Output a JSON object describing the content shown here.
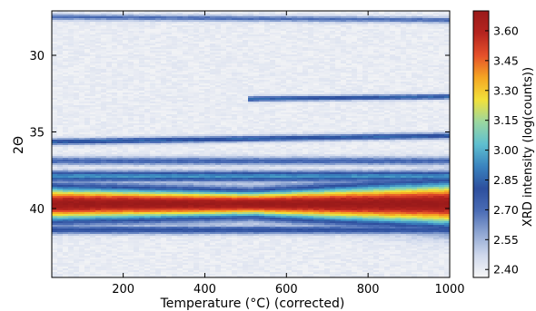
{
  "chart_data": {
    "type": "heatmap",
    "title": "",
    "xlabel": "Temperature (°C)  (corrected)",
    "ylabel": "2Θ",
    "colorbar_label": "XRD intensity (log(counts))",
    "xlim": [
      25,
      1000
    ],
    "ylim": [
      27.1,
      44.5
    ],
    "y_inverted": true,
    "x_ticks": [
      200,
      400,
      600,
      800,
      1000
    ],
    "y_ticks": [
      30,
      35,
      40
    ],
    "colorbar_range": [
      2.36,
      3.7
    ],
    "colorbar_ticks": [
      "3.60",
      "3.45",
      "3.30",
      "3.15",
      "3.00",
      "2.85",
      "2.70",
      "2.55",
      "2.40"
    ],
    "colormap": [
      "#f7f7f7",
      "#cfd8ec",
      "#8fa6d2",
      "#4a6cb5",
      "#2d4f9e",
      "#3a83bf",
      "#5fc0d0",
      "#9bd7a0",
      "#f2e13a",
      "#f5a623",
      "#e5502a",
      "#b5241f",
      "#9a1a1a"
    ],
    "background_level": 2.4,
    "bands": [
      {
        "center": [
          27.5,
          27.7
        ],
        "width": 0.2,
        "peak": 2.7,
        "x_start": 25
      },
      {
        "center": [
          33.0,
          32.7
        ],
        "width": 0.17,
        "peak": 2.85,
        "x_start": 500
      },
      {
        "center": [
          35.65,
          35.25
        ],
        "width": 0.2,
        "peak": 2.85,
        "x_start": 25
      },
      {
        "center": [
          36.9,
          36.9
        ],
        "width": 0.28,
        "peak": 2.72,
        "x_start": 25
      },
      {
        "center": [
          37.9,
          37.9
        ],
        "width": 0.35,
        "peak": 2.95,
        "x_start": 25
      },
      {
        "center": [
          39.7,
          39.7
        ],
        "width": [
          1.15,
          0.85,
          1.5
        ],
        "peak": 3.7,
        "x_start": 25
      },
      {
        "center": [
          41.4,
          41.4
        ],
        "width": 0.28,
        "peak": 2.8,
        "x_start": 25
      }
    ]
  }
}
